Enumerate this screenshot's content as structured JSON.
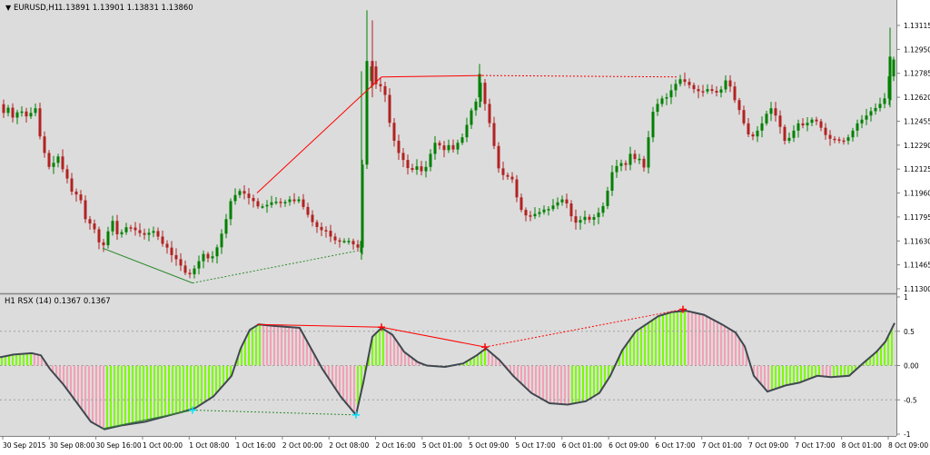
{
  "price_panel": {
    "symbol_label": "EURUSD,H1",
    "ohlc_text": "1.13891 1.13901 1.13831 1.13860",
    "price_axis_labels": [
      "1.13115",
      "1.12950",
      "1.12785",
      "1.12620",
      "1.12455",
      "1.12290",
      "1.12125",
      "1.11960",
      "1.11795",
      "1.11630",
      "1.11465",
      "1.11300"
    ]
  },
  "indicator_panel": {
    "label": "H1  RSX (14) 0.1367 0.1367",
    "axis_labels": [
      "1",
      "0.5",
      "0.00",
      "-0.5",
      "-1"
    ]
  },
  "time_axis_labels": [
    "30 Sep 2015",
    "30 Sep 08:00",
    "30 Sep 16:00",
    "1 Oct 00:00",
    "1 Oct 08:00",
    "1 Oct 16:00",
    "2 Oct 00:00",
    "2 Oct 08:00",
    "2 Oct 16:00",
    "5 Oct 01:00",
    "5 Oct 09:00",
    "5 Oct 17:00",
    "6 Oct 01:00",
    "6 Oct 09:00",
    "6 Oct 17:00",
    "7 Oct 01:00",
    "7 Oct 09:00",
    "7 Oct 17:00",
    "8 Oct 01:00",
    "8 Oct 09:00"
  ],
  "colors": {
    "background": "#dcdcdc",
    "bull_candle": "#008000",
    "bear_candle": "#b22222",
    "hist_positive": "#7CFC00",
    "hist_negative": "#f4a0b5",
    "rsx_line": "#404850",
    "divergence_red": "#ff0000",
    "divergence_green": "#2e8b2e"
  },
  "chart_data": {
    "type": "candlestick",
    "close_path_price": [
      [
        0,
        1.1256
      ],
      [
        5,
        1.125
      ],
      [
        10,
        1.1256
      ],
      [
        15,
        1.1246
      ],
      [
        20,
        1.1253
      ],
      [
        25,
        1.1252
      ],
      [
        30,
        1.1248
      ],
      [
        35,
        1.1252
      ],
      [
        40,
        1.1255
      ],
      [
        45,
        1.123
      ],
      [
        50,
        1.1222
      ],
      [
        55,
        1.1212
      ],
      [
        60,
        1.1218
      ],
      [
        65,
        1.1222
      ],
      [
        70,
        1.121
      ],
      [
        75,
        1.1205
      ],
      [
        80,
        1.1195
      ],
      [
        85,
        1.1195
      ],
      [
        90,
        1.119
      ],
      [
        95,
        1.1175
      ],
      [
        100,
        1.1175
      ],
      [
        105,
        1.117
      ],
      [
        110,
        1.116
      ],
      [
        115,
        1.116
      ],
      [
        120,
        1.1172
      ],
      [
        125,
        1.1178
      ],
      [
        130,
        1.1165
      ],
      [
        135,
        1.117
      ],
      [
        140,
        1.1173
      ],
      [
        145,
        1.1172
      ],
      [
        150,
        1.117
      ],
      [
        155,
        1.1168
      ],
      [
        160,
        1.1167
      ],
      [
        165,
        1.1169
      ],
      [
        170,
        1.117
      ],
      [
        175,
        1.1165
      ],
      [
        180,
        1.116
      ],
      [
        185,
        1.1158
      ],
      [
        190,
        1.1152
      ],
      [
        195,
        1.115
      ],
      [
        200,
        1.1145
      ],
      [
        205,
        1.114
      ],
      [
        210,
        1.114
      ],
      [
        215,
        1.1145
      ],
      [
        220,
        1.115
      ],
      [
        225,
        1.1155
      ],
      [
        230,
        1.115
      ],
      [
        235,
        1.1153
      ],
      [
        240,
        1.116
      ],
      [
        245,
        1.117
      ],
      [
        250,
        1.118
      ],
      [
        255,
        1.1193
      ],
      [
        260,
        1.1195
      ],
      [
        265,
        1.1198
      ],
      [
        270,
        1.1195
      ],
      [
        275,
        1.1192
      ],
      [
        280,
        1.119
      ],
      [
        285,
        1.1186
      ],
      [
        290,
        1.1187
      ],
      [
        295,
        1.1188
      ],
      [
        300,
        1.119
      ],
      [
        305,
        1.119
      ],
      [
        310,
        1.1189
      ],
      [
        315,
        1.119
      ],
      [
        320,
        1.1192
      ],
      [
        325,
        1.119
      ],
      [
        330,
        1.1192
      ],
      [
        335,
        1.1185
      ],
      [
        340,
        1.118
      ],
      [
        345,
        1.1175
      ],
      [
        350,
        1.1172
      ],
      [
        355,
        1.117
      ],
      [
        360,
        1.117
      ],
      [
        365,
        1.1165
      ],
      [
        370,
        1.1163
      ],
      [
        375,
        1.1163
      ],
      [
        380,
        1.1163
      ],
      [
        385,
        1.1163
      ],
      [
        390,
        1.116
      ],
      [
        395,
        1.1158
      ],
      [
        400,
        1.123
      ],
      [
        405,
        1.1284
      ],
      [
        410,
        1.1283
      ],
      [
        415,
        1.1268
      ],
      [
        420,
        1.127
      ],
      [
        425,
        1.1262
      ],
      [
        430,
        1.124
      ],
      [
        435,
        1.123
      ],
      [
        440,
        1.1222
      ],
      [
        445,
        1.1218
      ],
      [
        450,
        1.1212
      ],
      [
        455,
        1.1212
      ],
      [
        460,
        1.1215
      ],
      [
        465,
        1.121
      ],
      [
        470,
        1.1215
      ],
      [
        475,
        1.1225
      ],
      [
        480,
        1.1232
      ],
      [
        485,
        1.1228
      ],
      [
        490,
        1.1225
      ],
      [
        495,
        1.123
      ],
      [
        500,
        1.1225
      ],
      [
        505,
        1.1232
      ],
      [
        510,
        1.1235
      ],
      [
        515,
        1.1245
      ],
      [
        520,
        1.1255
      ],
      [
        525,
        1.126
      ],
      [
        530,
        1.1275
      ],
      [
        535,
        1.1253
      ],
      [
        540,
        1.1242
      ],
      [
        545,
        1.1225
      ],
      [
        550,
        1.121
      ],
      [
        555,
        1.1208
      ],
      [
        560,
        1.1207
      ],
      [
        565,
        1.1205
      ],
      [
        570,
        1.119
      ],
      [
        575,
        1.1183
      ],
      [
        580,
        1.118
      ],
      [
        585,
        1.118
      ],
      [
        590,
        1.1182
      ],
      [
        595,
        1.1183
      ],
      [
        600,
        1.1185
      ],
      [
        605,
        1.1185
      ],
      [
        610,
        1.1188
      ],
      [
        615,
        1.119
      ],
      [
        620,
        1.1192
      ],
      [
        625,
        1.1188
      ],
      [
        630,
        1.1178
      ],
      [
        635,
        1.1175
      ],
      [
        640,
        1.1178
      ],
      [
        645,
        1.118
      ],
      [
        650,
        1.1177
      ],
      [
        655,
        1.118
      ],
      [
        660,
        1.1183
      ],
      [
        665,
        1.1188
      ],
      [
        670,
        1.12
      ],
      [
        675,
        1.1213
      ],
      [
        680,
        1.1215
      ],
      [
        685,
        1.1217
      ],
      [
        690,
        1.1215
      ],
      [
        695,
        1.1225
      ],
      [
        700,
        1.1218
      ],
      [
        705,
        1.122
      ],
      [
        710,
        1.1212
      ],
      [
        715,
        1.124
      ],
      [
        720,
        1.1255
      ],
      [
        725,
        1.1258
      ],
      [
        730,
        1.1262
      ],
      [
        735,
        1.1262
      ],
      [
        740,
        1.1268
      ],
      [
        745,
        1.1272
      ],
      [
        750,
        1.1275
      ],
      [
        755,
        1.1272
      ],
      [
        760,
        1.127
      ],
      [
        765,
        1.1267
      ],
      [
        770,
        1.1266
      ],
      [
        775,
        1.1266
      ],
      [
        780,
        1.1268
      ],
      [
        785,
        1.1266
      ],
      [
        790,
        1.1265
      ],
      [
        795,
        1.1268
      ],
      [
        800,
        1.1275
      ],
      [
        805,
        1.1268
      ],
      [
        810,
        1.1258
      ],
      [
        815,
        1.1252
      ],
      [
        820,
        1.1242
      ],
      [
        825,
        1.1235
      ],
      [
        830,
        1.1235
      ],
      [
        835,
        1.124
      ],
      [
        840,
        1.1245
      ],
      [
        845,
        1.1252
      ],
      [
        850,
        1.1255
      ],
      [
        855,
        1.1248
      ],
      [
        860,
        1.124
      ],
      [
        865,
        1.123
      ],
      [
        870,
        1.1235
      ],
      [
        875,
        1.124
      ],
      [
        880,
        1.1245
      ],
      [
        885,
        1.1242
      ],
      [
        890,
        1.1245
      ],
      [
        895,
        1.1247
      ],
      [
        900,
        1.1245
      ],
      [
        905,
        1.124
      ],
      [
        910,
        1.1235
      ],
      [
        915,
        1.1233
      ],
      [
        920,
        1.1233
      ],
      [
        925,
        1.1232
      ],
      [
        930,
        1.1232
      ],
      [
        935,
        1.1235
      ],
      [
        940,
        1.124
      ],
      [
        945,
        1.1245
      ],
      [
        950,
        1.1247
      ],
      [
        955,
        1.125
      ],
      [
        960,
        1.1253
      ],
      [
        965,
        1.1255
      ],
      [
        970,
        1.1258
      ],
      [
        975,
        1.1262
      ],
      [
        980,
        1.128
      ],
      [
        985,
        1.129
      ]
    ],
    "price_divergence_lines": [
      {
        "style": "solid",
        "color": "red",
        "from": [
          283,
          1.1196
        ],
        "to": [
          420,
          1.1276
        ]
      },
      {
        "style": "solid",
        "color": "red",
        "from": [
          420,
          1.1276
        ],
        "to": [
          531,
          1.1277
        ]
      },
      {
        "style": "dotted",
        "color": "red",
        "from": [
          531,
          1.1277
        ],
        "to": [
          745,
          1.1276
        ]
      },
      {
        "style": "solid",
        "color": "green",
        "from": [
          113,
          1.1158
        ],
        "to": [
          212,
          1.1134
        ]
      },
      {
        "style": "dotted",
        "color": "green",
        "from": [
          212,
          1.1134
        ],
        "to": [
          392,
          1.1156
        ]
      }
    ],
    "rsx_path": [
      [
        0,
        0.12
      ],
      [
        15,
        0.16
      ],
      [
        35,
        0.18
      ],
      [
        45,
        0.15
      ],
      [
        55,
        -0.05
      ],
      [
        70,
        -0.28
      ],
      [
        85,
        -0.55
      ],
      [
        100,
        -0.82
      ],
      [
        115,
        -0.93
      ],
      [
        135,
        -0.87
      ],
      [
        160,
        -0.82
      ],
      [
        185,
        -0.73
      ],
      [
        200,
        -0.68
      ],
      [
        215,
        -0.62
      ],
      [
        235,
        -0.45
      ],
      [
        255,
        -0.15
      ],
      [
        265,
        0.25
      ],
      [
        275,
        0.52
      ],
      [
        285,
        0.6
      ],
      [
        300,
        0.58
      ],
      [
        330,
        0.55
      ],
      [
        355,
        -0.05
      ],
      [
        375,
        -0.45
      ],
      [
        392,
        -0.72
      ],
      [
        400,
        -0.25
      ],
      [
        410,
        0.42
      ],
      [
        420,
        0.55
      ],
      [
        432,
        0.45
      ],
      [
        445,
        0.2
      ],
      [
        460,
        0.05
      ],
      [
        470,
        0.0
      ],
      [
        490,
        -0.02
      ],
      [
        510,
        0.03
      ],
      [
        525,
        0.15
      ],
      [
        535,
        0.25
      ],
      [
        550,
        0.08
      ],
      [
        565,
        -0.15
      ],
      [
        585,
        -0.4
      ],
      [
        605,
        -0.55
      ],
      [
        625,
        -0.57
      ],
      [
        645,
        -0.52
      ],
      [
        660,
        -0.4
      ],
      [
        672,
        -0.15
      ],
      [
        685,
        0.22
      ],
      [
        700,
        0.5
      ],
      [
        725,
        0.72
      ],
      [
        740,
        0.78
      ],
      [
        755,
        0.8
      ],
      [
        775,
        0.74
      ],
      [
        795,
        0.6
      ],
      [
        810,
        0.48
      ],
      [
        820,
        0.28
      ],
      [
        830,
        -0.15
      ],
      [
        845,
        -0.38
      ],
      [
        865,
        -0.29
      ],
      [
        880,
        -0.25
      ],
      [
        900,
        -0.15
      ],
      [
        915,
        -0.17
      ],
      [
        935,
        -0.15
      ],
      [
        950,
        0.03
      ],
      [
        965,
        0.2
      ],
      [
        975,
        0.35
      ],
      [
        985,
        0.62
      ]
    ],
    "rsx_divergence_lines": [
      {
        "style": "solid",
        "color": "red",
        "from": [
          283,
          0.6
        ],
        "to": [
          420,
          0.56
        ]
      },
      {
        "style": "solid",
        "color": "red",
        "from": [
          420,
          0.56
        ],
        "to": [
          534,
          0.27
        ]
      },
      {
        "style": "dotted",
        "color": "red",
        "from": [
          534,
          0.27
        ],
        "to": [
          752,
          0.82
        ]
      },
      {
        "style": "solid",
        "color": "green",
        "from": [
          113,
          -0.92
        ],
        "to": [
          212,
          -0.65
        ]
      },
      {
        "style": "dotted",
        "color": "green",
        "from": [
          212,
          -0.65
        ],
        "to": [
          392,
          -0.72
        ]
      }
    ],
    "markers": [
      {
        "panel": "rsx",
        "x": 420,
        "y": 0.56,
        "color": "red"
      },
      {
        "panel": "rsx",
        "x": 534,
        "y": 0.27,
        "color": "red"
      },
      {
        "panel": "rsx",
        "x": 752,
        "y": 0.82,
        "color": "red"
      },
      {
        "panel": "rsx",
        "x": 212,
        "y": -0.65,
        "color": "cyan"
      },
      {
        "panel": "rsx",
        "x": 392,
        "y": -0.72,
        "color": "cyan"
      }
    ]
  }
}
